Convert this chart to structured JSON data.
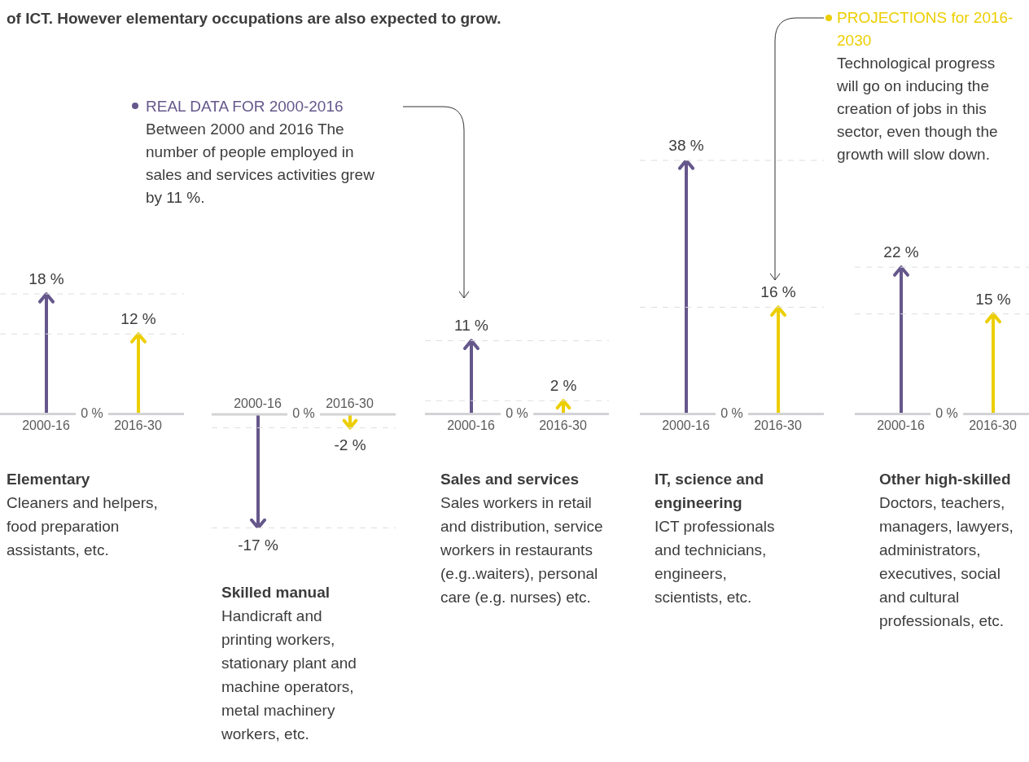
{
  "chart_data": [
    {
      "type": "bar",
      "title": "Elementary",
      "subtitle": "Cleaners and helpers, food preparation assistants, etc.",
      "categories": [
        "2000-16",
        "2016-30"
      ],
      "values": [
        18,
        12
      ],
      "colors": [
        "#65578b",
        "#ecce00"
      ],
      "value_labels": [
        "18 %",
        "12 %"
      ],
      "tick_labels": "x",
      "ref_lines": [
        {
          "axis": "y",
          "value": 18,
          "color": "#dddddd",
          "line_style": "dashed"
        },
        {
          "axis": "y",
          "value": 12,
          "color": "#dddddd",
          "line_style": "dashed"
        }
      ],
      "annotations": [
        "of ICT. However elementary occupations are also expected to grow.",
        {
          "text": "0 %",
          "y": 0
        }
      ]
    },
    {
      "type": "bar",
      "title": "Skilled manual",
      "subtitle": "Handicraft and printing workers, stationary plant and machine operators, metal machinery workers, etc.",
      "categories": [
        "2000-16",
        "2016-30"
      ],
      "values": [
        -17,
        -2
      ],
      "colors": [
        "#65578b",
        "#ecce00"
      ],
      "value_labels": [
        "-17 %",
        "-2 %"
      ],
      "tick_labels": "x",
      "ref_lines": [
        {
          "axis": "y",
          "value": -17,
          "color": "#dddddd",
          "line_style": "dashed"
        },
        {
          "axis": "y",
          "value": -2,
          "color": "#dddddd",
          "line_style": "dashed"
        }
      ],
      "annotations": [
        {
          "text": "0 %",
          "y": 0
        }
      ]
    },
    {
      "type": "bar",
      "title": "Sales and services",
      "subtitle": "Sales workers in retail and distribution, service workers in restaurants (e.g..waiters), personal care (e.g. nurses) etc.",
      "categories": [
        "2000-16",
        "2016-30"
      ],
      "values": [
        11,
        2
      ],
      "colors": [
        "#65578b",
        "#ecce00"
      ],
      "value_labels": [
        "11 %",
        "2 %"
      ],
      "tick_labels": "x",
      "ref_lines": [
        {
          "axis": "y",
          "value": 11,
          "color": "#dddddd",
          "line_style": "dashed"
        },
        {
          "axis": "y",
          "value": 2,
          "color": "#dddddd",
          "line_style": "dashed"
        }
      ],
      "annotations": [
        "REAL DATA FOR 2000-2016",
        "Between 2000 and 2016 The number of people employed in sales and services activities grew by 11 %.",
        {
          "text": "0 %",
          "y": 0
        }
      ]
    },
    {
      "type": "bar",
      "title": "IT, science and engineering",
      "subtitle": "ICT professionals and technicians, engineers, scientists, etc.",
      "categories": [
        "2000-16",
        "2016-30"
      ],
      "values": [
        38,
        16
      ],
      "colors": [
        "#65578b",
        "#ecce00"
      ],
      "value_labels": [
        "38 %",
        "16 %"
      ],
      "tick_labels": "x",
      "ref_lines": [
        {
          "axis": "y",
          "value": 38,
          "color": "#dddddd",
          "line_style": "dashed"
        },
        {
          "axis": "y",
          "value": 16,
          "color": "#dddddd",
          "line_style": "dashed"
        }
      ],
      "annotations": [
        "PROJECTIONS for 2016-2030",
        "Technological progress will go on inducing the creation of jobs in this sector, even though the growth will slow down.",
        {
          "text": "0 %",
          "y": 0
        }
      ]
    },
    {
      "type": "bar",
      "title": "Other high-skilled",
      "subtitle": "Doctors, teachers, managers, lawyers, administrators, executives, social and cultural professionals, etc.",
      "categories": [
        "2000-16",
        "2016-30"
      ],
      "values": [
        22,
        15
      ],
      "colors": [
        "#65578b",
        "#ecce00"
      ],
      "value_labels": [
        "22 %",
        "15 %"
      ],
      "tick_labels": "x",
      "ref_lines": [
        {
          "axis": "y",
          "value": 22,
          "color": "#dddddd",
          "line_style": "dashed"
        },
        {
          "axis": "y",
          "value": 15,
          "color": "#dddddd",
          "line_style": "dashed"
        }
      ],
      "annotations": [
        {
          "text": "0 %",
          "y": 0
        }
      ]
    }
  ]
}
